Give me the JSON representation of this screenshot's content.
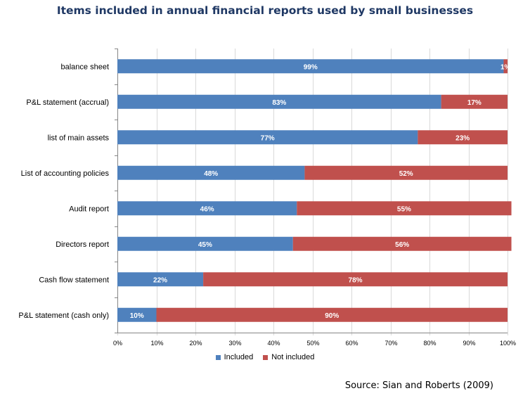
{
  "chart_data": {
    "type": "bar",
    "orientation": "horizontal",
    "stacked": true,
    "title": "Items included in annual financial reports used by small businesses",
    "categories": [
      "balance sheet",
      "P&L statement (accrual)",
      "list of main assets",
      "List of accounting policies",
      "Audit report",
      "Directors report",
      "Cash flow statement",
      "P&L statement (cash only)"
    ],
    "series": [
      {
        "name": "Included",
        "color": "#4f81bd",
        "values": [
          99,
          83,
          77,
          48,
          46,
          45,
          22,
          10
        ],
        "labels": [
          "99%",
          "83%",
          "77%",
          "48%",
          "46%",
          "45%",
          "22%",
          "10%"
        ]
      },
      {
        "name": "Not included",
        "color": "#c0504d",
        "values": [
          1,
          17,
          23,
          52,
          55,
          56,
          78,
          90
        ],
        "labels": [
          "1%",
          "17%",
          "23%",
          "52%",
          "55%",
          "56%",
          "78%",
          "90%"
        ]
      }
    ],
    "xlim": [
      0,
      100
    ],
    "x_ticks": [
      "0%",
      "10%",
      "20%",
      "30%",
      "40%",
      "50%",
      "60%",
      "70%",
      "80%",
      "90%",
      "100%"
    ],
    "grid": true,
    "legend_position": "bottom"
  },
  "source": "Source: Sian and Roberts (2009)"
}
